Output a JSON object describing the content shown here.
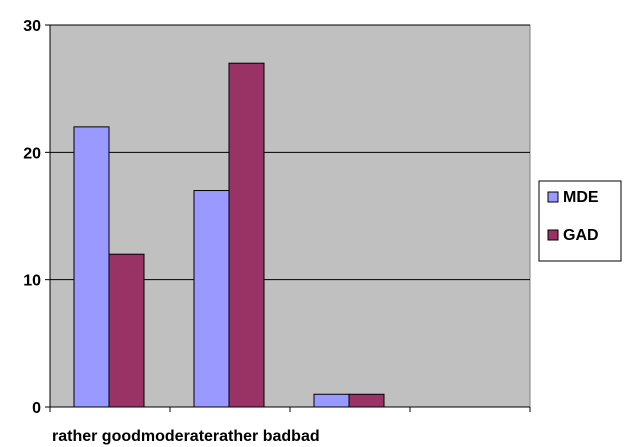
{
  "chart_data": {
    "type": "bar",
    "title": "",
    "xlabel": "",
    "ylabel": "",
    "categories": [
      "rather good",
      "moderate",
      "rather bad",
      "bad"
    ],
    "series": [
      {
        "name": "MDE",
        "values": [
          22,
          17,
          1,
          0
        ],
        "color": "#9999ff"
      },
      {
        "name": "GAD",
        "values": [
          12,
          27,
          1,
          0
        ],
        "color": "#993366"
      }
    ],
    "ylim": [
      0,
      30
    ],
    "yticks": [
      0,
      10,
      20,
      30
    ],
    "grid": true,
    "legend": "right",
    "plot_background": "#c0c0c0"
  }
}
